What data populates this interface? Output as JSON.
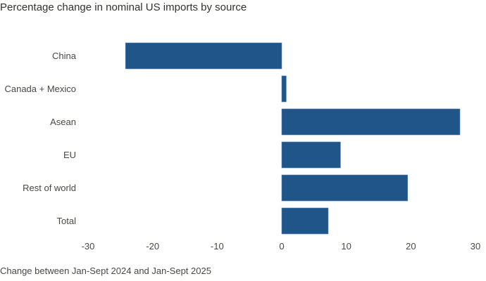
{
  "chart_data": {
    "type": "bar",
    "orientation": "horizontal",
    "title": "Percentage change in nominal US imports by source",
    "categories": [
      "China",
      "Canada + Mexico",
      "Asean",
      "EU",
      "Rest of world",
      "Total"
    ],
    "values": [
      -24.2,
      0.7,
      27.6,
      9.1,
      19.5,
      7.2
    ],
    "xlim": [
      -30,
      30
    ],
    "xticks": [
      -30,
      -20,
      -10,
      0,
      10,
      20,
      30
    ],
    "xlabel": "",
    "ylabel": "",
    "grid": false,
    "bar_color": "#1f5588",
    "note": "Change between Jan-Sept 2024 and Jan-Sept 2025"
  }
}
